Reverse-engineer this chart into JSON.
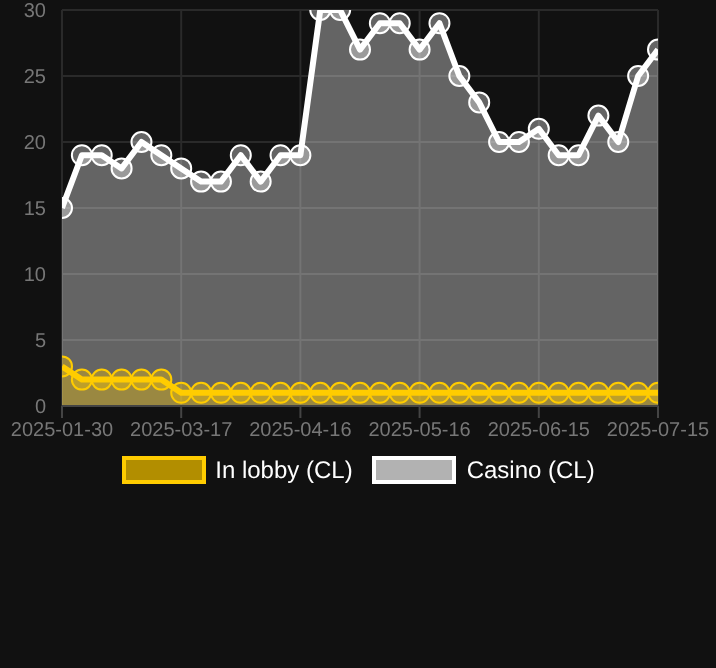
{
  "chart_data": {
    "type": "area",
    "categories": [
      "2025-01-30",
      null,
      null,
      null,
      null,
      null,
      "2025-03-17",
      null,
      null,
      null,
      null,
      null,
      "2025-04-16",
      null,
      null,
      null,
      null,
      null,
      "2025-05-16",
      null,
      null,
      null,
      null,
      null,
      "2025-06-15",
      null,
      null,
      null,
      null,
      null,
      "2025-07-15"
    ],
    "series": [
      {
        "name": "In lobby (CL)",
        "color": "#ffcc00",
        "values": [
          3,
          2,
          2,
          2,
          2,
          2,
          1,
          1,
          1,
          1,
          1,
          1,
          1,
          1,
          1,
          1,
          1,
          1,
          1,
          1,
          1,
          1,
          1,
          1,
          1,
          1,
          1,
          1,
          1,
          1,
          1
        ]
      },
      {
        "name": "Casino (CL)",
        "color": "#ffffff",
        "values": [
          15,
          19,
          19,
          18,
          20,
          19,
          18,
          17,
          17,
          19,
          17,
          19,
          19,
          30,
          30,
          27,
          29,
          29,
          27,
          29,
          25,
          23,
          20,
          20,
          21,
          19,
          19,
          22,
          20,
          25,
          27
        ]
      }
    ],
    "ylim": [
      0,
      30
    ],
    "yticks": [
      0,
      5,
      10,
      15,
      20,
      25,
      30
    ],
    "grid": true,
    "legend": "bottom",
    "marker": "circle"
  }
}
